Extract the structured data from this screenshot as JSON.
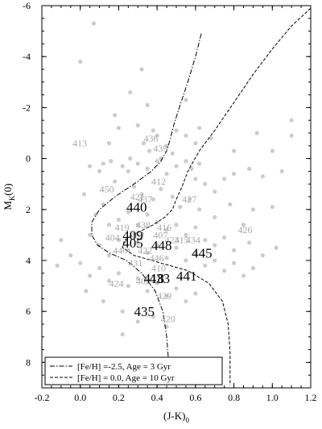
{
  "chart_data": {
    "type": "scatter",
    "xlabel": "(J-K)",
    "xlabel_sub": "0",
    "ylabel": "M",
    "ylabel_sub": "K",
    "ylabel_suffix": "(0)",
    "xlim": [
      -0.2,
      1.2
    ],
    "ylim": [
      9,
      -6
    ],
    "y_inverted": true,
    "x_ticks": [
      -0.2,
      0.0,
      0.2,
      0.4,
      0.6,
      0.8,
      1.0,
      1.2
    ],
    "x_tick_labels": [
      "-0.2",
      "0.0",
      "0.2",
      "0.4",
      "0.6",
      "0.8",
      "1.0",
      "1.2"
    ],
    "y_ticks": [
      -6,
      -4,
      -2,
      0,
      2,
      4,
      6,
      8
    ],
    "y_tick_labels": [
      "-6",
      "-4",
      "-2",
      "0",
      "2",
      "4",
      "6",
      "8"
    ],
    "grid": false,
    "point_color": "#cccccc",
    "points": [
      [
        0.07,
        -5.3
      ],
      [
        0.0,
        -3.8
      ],
      [
        0.32,
        -3.5
      ],
      [
        0.26,
        -2.6
      ],
      [
        0.35,
        -2.1
      ],
      [
        0.55,
        -2.3
      ],
      [
        0.18,
        -1.7
      ],
      [
        0.3,
        -1.3
      ],
      [
        0.2,
        -1.2
      ],
      [
        0.38,
        -1.1
      ],
      [
        0.5,
        -1.1
      ],
      [
        0.62,
        -1.2
      ],
      [
        0.55,
        -0.9
      ],
      [
        0.4,
        -0.9
      ],
      [
        0.15,
        -0.6
      ],
      [
        0.33,
        -0.6
      ],
      [
        0.45,
        -0.5
      ],
      [
        0.6,
        -0.6
      ],
      [
        0.68,
        -0.8
      ],
      [
        0.8,
        -0.3
      ],
      [
        1.0,
        -0.3
      ],
      [
        1.1,
        -0.9
      ],
      [
        1.1,
        -1.5
      ],
      [
        0.92,
        -1.0
      ],
      [
        0.05,
        0.3
      ],
      [
        0.1,
        0.5
      ],
      [
        0.12,
        0.2
      ],
      [
        0.22,
        0.3
      ],
      [
        0.25,
        0.5
      ],
      [
        0.3,
        0.2
      ],
      [
        0.35,
        0.4
      ],
      [
        0.4,
        0.1
      ],
      [
        0.45,
        0.6
      ],
      [
        0.5,
        0.3
      ],
      [
        0.55,
        0.1
      ],
      [
        0.58,
        0.4
      ],
      [
        0.6,
        0.8
      ],
      [
        0.62,
        0.2
      ],
      [
        0.65,
        1.0
      ],
      [
        0.7,
        1.3
      ],
      [
        0.75,
        0.8
      ],
      [
        0.8,
        0.6
      ],
      [
        0.88,
        0.4
      ],
      [
        0.95,
        0.7
      ],
      [
        1.05,
        0.5
      ],
      [
        0.18,
        0.9
      ],
      [
        0.28,
        1.1
      ],
      [
        0.32,
        1.4
      ],
      [
        0.38,
        1.6
      ],
      [
        0.42,
        1.2
      ],
      [
        0.48,
        1.5
      ],
      [
        0.52,
        1.9
      ],
      [
        0.57,
        1.6
      ],
      [
        0.62,
        2.0
      ],
      [
        0.7,
        2.3
      ],
      [
        0.78,
        1.8
      ],
      [
        0.85,
        2.6
      ],
      [
        0.9,
        2.0
      ],
      [
        1.0,
        1.9
      ],
      [
        0.08,
        2.2
      ],
      [
        0.12,
        1.8
      ],
      [
        0.15,
        2.6
      ],
      [
        0.2,
        2.4
      ],
      [
        0.25,
        2.1
      ],
      [
        0.3,
        2.6
      ],
      [
        0.35,
        2.2
      ],
      [
        0.4,
        2.5
      ],
      [
        0.45,
        2.8
      ],
      [
        0.5,
        2.6
      ],
      [
        0.55,
        3.0
      ],
      [
        0.6,
        2.7
      ],
      [
        0.65,
        3.2
      ],
      [
        0.7,
        3.4
      ],
      [
        0.75,
        3.1
      ],
      [
        0.8,
        3.6
      ],
      [
        0.88,
        3.3
      ],
      [
        0.95,
        3.8
      ],
      [
        1.02,
        3.5
      ],
      [
        0.05,
        3.0
      ],
      [
        0.1,
        3.4
      ],
      [
        0.15,
        3.8
      ],
      [
        0.2,
        3.2
      ],
      [
        0.25,
        3.6
      ],
      [
        0.3,
        3.3
      ],
      [
        0.35,
        3.7
      ],
      [
        0.4,
        3.4
      ],
      [
        0.45,
        3.9
      ],
      [
        0.5,
        3.5
      ],
      [
        0.55,
        4.0
      ],
      [
        0.6,
        3.7
      ],
      [
        0.65,
        4.2
      ],
      [
        0.7,
        4.0
      ],
      [
        0.75,
        4.4
      ],
      [
        0.8,
        4.1
      ],
      [
        0.85,
        4.6
      ],
      [
        0.9,
        4.3
      ],
      [
        0.0,
        4.1
      ],
      [
        0.05,
        4.6
      ],
      [
        0.1,
        4.3
      ],
      [
        0.15,
        4.8
      ],
      [
        0.2,
        4.5
      ],
      [
        0.25,
        5.0
      ],
      [
        0.3,
        4.7
      ],
      [
        0.35,
        5.2
      ],
      [
        0.4,
        4.9
      ],
      [
        0.45,
        5.4
      ],
      [
        0.5,
        5.1
      ],
      [
        0.55,
        5.6
      ],
      [
        0.6,
        5.3
      ],
      [
        -0.1,
        3.2
      ],
      [
        -0.05,
        3.8
      ],
      [
        -0.12,
        4.2
      ],
      [
        0.03,
        5.2
      ],
      [
        0.12,
        5.6
      ],
      [
        0.22,
        6.0
      ],
      [
        0.3,
        6.4
      ],
      [
        0.38,
        6.2
      ],
      [
        0.22,
        6.9
      ],
      [
        0.45,
        6.6
      ],
      [
        0.02,
        1.4
      ],
      [
        0.42,
        0.0
      ],
      [
        0.26,
        0.0
      ],
      [
        0.48,
        -0.2
      ],
      [
        0.36,
        -0.3
      ],
      [
        0.16,
        0.1
      ]
    ],
    "curves": [
      {
        "name": "[Fe/H] =-2.5, Age =  3 Gyr",
        "dash": "dashdot",
        "x": [
          0.63,
          0.6,
          0.56,
          0.52,
          0.49,
          0.47,
          0.45,
          0.42,
          0.37,
          0.28,
          0.18,
          0.1,
          0.06,
          0.06,
          0.09,
          0.15,
          0.24,
          0.32,
          0.39,
          0.43,
          0.45,
          0.46,
          0.46
        ],
        "y": [
          -4.9,
          -4.0,
          -3.0,
          -2.1,
          -1.4,
          -0.8,
          -0.3,
          0.1,
          0.5,
          1.0,
          1.5,
          2.0,
          2.5,
          3.0,
          3.4,
          3.7,
          4.0,
          4.5,
          5.2,
          6.0,
          7.0,
          8.0,
          8.9
        ]
      },
      {
        "name": "[Fe/H] = 0.0, Age = 10 Gyr",
        "dash": "dashed",
        "x": [
          1.2,
          1.1,
          1.0,
          0.9,
          0.8,
          0.7,
          0.62,
          0.56,
          0.53,
          0.5,
          0.48,
          0.44,
          0.38,
          0.3,
          0.23,
          0.22,
          0.28,
          0.42,
          0.56,
          0.67,
          0.74,
          0.77,
          0.78,
          0.78
        ],
        "y": [
          -5.9,
          -5.2,
          -4.3,
          -3.3,
          -2.2,
          -1.1,
          -0.3,
          0.5,
          1.1,
          1.6,
          2.0,
          2.3,
          2.6,
          2.9,
          3.2,
          3.5,
          3.8,
          4.1,
          4.4,
          4.9,
          5.6,
          6.5,
          7.6,
          8.9
        ]
      }
    ],
    "labels_grey": [
      {
        "text": "413",
        "x": -0.04,
        "y": -0.6
      },
      {
        "text": "436",
        "x": 0.33,
        "y": -0.8
      },
      {
        "text": "439",
        "x": 0.38,
        "y": -0.4
      },
      {
        "text": "412",
        "x": 0.37,
        "y": 0.9
      },
      {
        "text": "450",
        "x": 0.1,
        "y": 1.2
      },
      {
        "text": "421",
        "x": 0.26,
        "y": 1.5
      },
      {
        "text": "437",
        "x": 0.3,
        "y": 1.6
      },
      {
        "text": "427",
        "x": 0.53,
        "y": 1.6
      },
      {
        "text": "426",
        "x": 0.82,
        "y": 2.8
      },
      {
        "text": "419",
        "x": 0.18,
        "y": 2.7
      },
      {
        "text": "438",
        "x": 0.29,
        "y": 2.6
      },
      {
        "text": "416",
        "x": 0.4,
        "y": 2.7
      },
      {
        "text": "404",
        "x": 0.13,
        "y": 3.1
      },
      {
        "text": "452",
        "x": 0.26,
        "y": 3.0
      },
      {
        "text": "407",
        "x": 0.38,
        "y": 3.0
      },
      {
        "text": "423",
        "x": 0.44,
        "y": 3.2
      },
      {
        "text": "415",
        "x": 0.49,
        "y": 3.2
      },
      {
        "text": "434",
        "x": 0.55,
        "y": 3.2
      },
      {
        "text": "440",
        "x": 0.17,
        "y": 3.6
      },
      {
        "text": "422",
        "x": 0.3,
        "y": 3.6
      },
      {
        "text": "446",
        "x": 0.36,
        "y": 3.9
      },
      {
        "text": "431",
        "x": 0.25,
        "y": 4.1
      },
      {
        "text": "410",
        "x": 0.37,
        "y": 4.3
      },
      {
        "text": "424",
        "x": 0.15,
        "y": 4.9
      },
      {
        "text": "402",
        "x": 0.29,
        "y": 4.8
      },
      {
        "text": "429",
        "x": 0.4,
        "y": 5.4
      },
      {
        "text": "420",
        "x": 0.42,
        "y": 6.3
      }
    ],
    "labels_black": [
      {
        "text": "440",
        "x": 0.24,
        "y": 1.9
      },
      {
        "text": "409",
        "x": 0.22,
        "y": 3.0
      },
      {
        "text": "405",
        "x": 0.22,
        "y": 3.3
      },
      {
        "text": "448",
        "x": 0.37,
        "y": 3.4
      },
      {
        "text": "445",
        "x": 0.58,
        "y": 3.7
      },
      {
        "text": "441",
        "x": 0.5,
        "y": 4.6
      },
      {
        "text": "418",
        "x": 0.33,
        "y": 4.7
      },
      {
        "text": "433",
        "x": 0.36,
        "y": 4.7
      },
      {
        "text": "435",
        "x": 0.28,
        "y": 6.0
      }
    ],
    "legend": {
      "placement": "bottom-left",
      "entries": [
        "[Fe/H] =-2.5, Age =  3 Gyr",
        "[Fe/H] = 0.0, Age = 10 Gyr"
      ]
    }
  }
}
